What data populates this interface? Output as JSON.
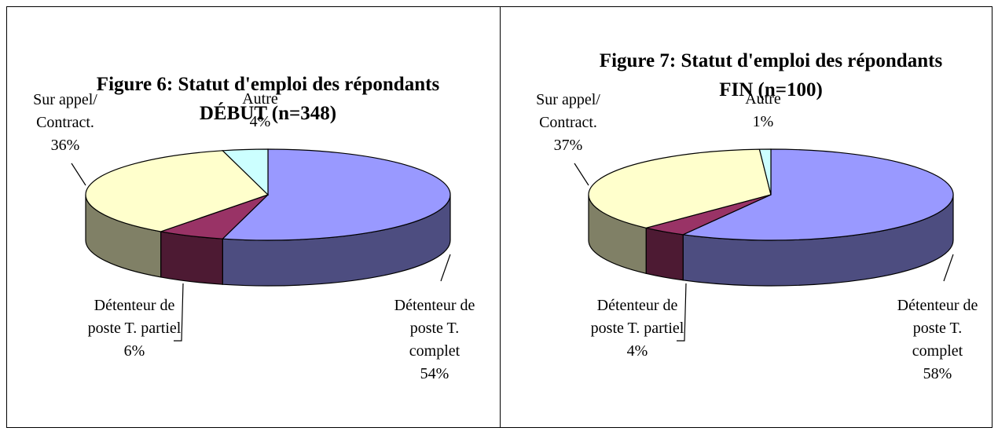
{
  "chart_data": [
    {
      "type": "pie",
      "title": "Figure 6: Statut d'emploi des répondants DÉBUT (n=348)",
      "categories": [
        "Détenteur de poste T. complet",
        "Détenteur de poste T. partiel",
        "Sur appel/ Contract.",
        "Autre"
      ],
      "values": [
        54,
        6,
        36,
        4
      ],
      "value_labels": [
        "54%",
        "6%",
        "36%",
        "4%"
      ],
      "colors": [
        "#9999ff",
        "#993366",
        "#ffffcc",
        "#ccffff"
      ]
    },
    {
      "type": "pie",
      "title": "Figure 7: Statut d'emploi des répondants FIN (n=100)",
      "categories": [
        "Détenteur de poste T. complet",
        "Détenteur de poste T. partiel",
        "Sur appel/ Contract.",
        "Autre"
      ],
      "values": [
        58,
        4,
        37,
        1
      ],
      "value_labels": [
        "58%",
        "4%",
        "37%",
        "1%"
      ],
      "colors": [
        "#9999ff",
        "#993366",
        "#ffffcc",
        "#ccffff"
      ]
    }
  ]
}
